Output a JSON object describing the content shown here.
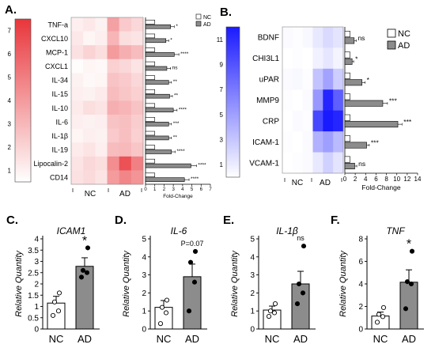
{
  "panels": {
    "A": {
      "letter": "A.",
      "colorbar_ticks": [
        "7",
        "6",
        "5",
        "4",
        "3",
        "2",
        "1"
      ],
      "rows": [
        "TNF-a",
        "CXCL10",
        "MCP-1",
        "CXCL1",
        "IL-34",
        "IL-15",
        "IL-10",
        "IL-6",
        "IL-1β",
        "IL-19",
        "Lipocalin-2",
        "CD14"
      ],
      "heat": [
        [
          1.5,
          1.7,
          1.4,
          3.8,
          2.6,
          2.2
        ],
        [
          1.7,
          1.3,
          1.5,
          3.2,
          2.0,
          1.8
        ],
        [
          1.9,
          2.3,
          2.0,
          4.0,
          3.4,
          3.0
        ],
        [
          1.1,
          1.3,
          1.2,
          2.4,
          2.2,
          1.8
        ],
        [
          1.4,
          1.2,
          1.3,
          2.8,
          2.6,
          2.2
        ],
        [
          1.5,
          1.4,
          1.6,
          3.0,
          2.7,
          2.4
        ],
        [
          1.6,
          2.0,
          1.8,
          3.4,
          3.2,
          2.8
        ],
        [
          1.5,
          1.4,
          1.5,
          2.8,
          2.9,
          2.5
        ],
        [
          1.3,
          1.5,
          1.4,
          2.6,
          2.9,
          2.4
        ],
        [
          1.6,
          1.8,
          1.5,
          3.0,
          3.1,
          2.7
        ],
        [
          1.8,
          2.2,
          2.0,
          4.4,
          6.2,
          4.8
        ],
        [
          1.9,
          2.1,
          1.8,
          4.0,
          4.6,
          4.2
        ]
      ],
      "groups": [
        "NC",
        "AD"
      ],
      "legend": [
        "NC",
        "AD"
      ],
      "xticks": [
        "0",
        "1",
        "2",
        "3",
        "4",
        "5",
        "6",
        "7"
      ],
      "xlabel": "Fold-Change",
      "sig": [
        "*",
        "*",
        "****",
        "ns",
        "**",
        "**",
        "****",
        "***",
        "**",
        "****",
        "****",
        "****"
      ]
    },
    "B": {
      "letter": "B.",
      "colorbar_ticks": [
        "11",
        "9",
        "7",
        "5",
        "3",
        "1"
      ],
      "rows": [
        "BDNF",
        "CHI3L1",
        "uPAR",
        "MMP9",
        "CRP",
        "ICAM-1",
        "VCAM-1"
      ],
      "heat": [
        [
          1.2,
          1.1,
          1.3,
          2.0,
          2.6,
          2.2
        ],
        [
          1.0,
          1.1,
          1.0,
          1.6,
          2.1,
          1.5
        ],
        [
          1.2,
          1.3,
          1.1,
          3.6,
          5.0,
          3.2
        ],
        [
          1.1,
          1.0,
          1.2,
          5.5,
          10.5,
          8.0
        ],
        [
          1.0,
          1.2,
          1.1,
          9.0,
          11.0,
          10.5
        ],
        [
          1.1,
          1.0,
          1.2,
          4.4,
          5.2,
          4.0
        ],
        [
          1.0,
          1.1,
          1.2,
          2.0,
          3.0,
          2.2
        ]
      ],
      "groups": [
        "NC",
        "AD"
      ],
      "legend": [
        "NC",
        "AD"
      ],
      "xticks": [
        "0",
        "2",
        "4",
        "6",
        "8",
        "10",
        "12",
        "14"
      ],
      "xlabel": "Fold-Change",
      "sig": [
        "ns",
        "*",
        "*",
        "***",
        "***",
        "***",
        "ns"
      ]
    },
    "C": {
      "letter": "C.",
      "title": "ICAM1",
      "ylabel": "Relative Quantity",
      "yticks": [
        "0",
        "0.5",
        "1",
        "1.5",
        "2",
        "2.5",
        "3",
        "3.5",
        "4"
      ],
      "sig": "*",
      "categories": [
        "NC",
        "AD"
      ]
    },
    "D": {
      "letter": "D.",
      "title": "IL-6",
      "ylabel": "Relative Quantity",
      "yticks": [
        "0",
        "1",
        "2",
        "3",
        "4",
        "5"
      ],
      "sig": "P=0.07",
      "categories": [
        "NC",
        "AD"
      ]
    },
    "E": {
      "letter": "E.",
      "title": "IL-1β",
      "ylabel": "Relative Quantity",
      "yticks": [
        "0",
        "1",
        "2",
        "3",
        "4",
        "5"
      ],
      "sig": "ns",
      "categories": [
        "NC",
        "AD"
      ]
    },
    "F": {
      "letter": "F.",
      "title": "TNF",
      "ylabel": "Relative Quantity",
      "yticks": [
        "0",
        "2",
        "4",
        "6",
        "8"
      ],
      "sig": "*",
      "categories": [
        "NC",
        "AD"
      ]
    }
  },
  "colors": {
    "nc_bar": "#ffffff",
    "ad_bar": "#8c8c8c",
    "heat_a": "#e8363b",
    "heat_b": "#1a1aff"
  },
  "chart_data": [
    {
      "type": "bar",
      "panel": "A",
      "categories": [
        "TNF-a",
        "CXCL10",
        "MCP-1",
        "CXCL1",
        "IL-34",
        "IL-15",
        "IL-10",
        "IL-6",
        "IL-1β",
        "IL-19",
        "Lipocalin-2",
        "CD14"
      ],
      "series": [
        {
          "name": "NC",
          "values": [
            1,
            1,
            1,
            1,
            1,
            1,
            1,
            1,
            1,
            1,
            1,
            1
          ]
        },
        {
          "name": "AD",
          "values": [
            2.7,
            2.2,
            3.1,
            2.3,
            2.5,
            2.6,
            3.0,
            2.5,
            2.5,
            2.8,
            4.9,
            4.2
          ]
        }
      ],
      "errors": [
        0.4,
        0.3,
        0.5,
        0.4,
        0.3,
        0.3,
        0.4,
        0.3,
        0.3,
        0.4,
        0.6,
        0.5
      ],
      "xlabel": "Fold-Change",
      "xlim": [
        0,
        7
      ]
    },
    {
      "type": "bar",
      "panel": "B",
      "categories": [
        "BDNF",
        "CHI3L1",
        "uPAR",
        "MMP9",
        "CRP",
        "ICAM-1",
        "VCAM-1"
      ],
      "series": [
        {
          "name": "NC",
          "values": [
            1,
            1,
            1,
            1,
            1,
            1,
            1
          ]
        },
        {
          "name": "AD",
          "values": [
            1.8,
            1.4,
            3.3,
            7.3,
            10.2,
            4.2,
            1.9
          ]
        }
      ],
      "errors": [
        0.4,
        0.3,
        0.6,
        0.9,
        0.8,
        0.5,
        0.4
      ],
      "xlabel": "Fold-Change",
      "xlim": [
        0,
        14
      ]
    },
    {
      "type": "bar",
      "panel": "C",
      "title": "ICAM1",
      "ylabel": "Relative Quantity",
      "ylim": [
        0,
        4
      ],
      "categories": [
        "NC",
        "AD"
      ],
      "values": [
        1.15,
        2.78
      ],
      "errors": [
        0.3,
        0.38
      ],
      "points": [
        [
          0.6,
          0.8,
          1.2,
          1.6
        ],
        [
          2.3,
          2.5,
          2.6,
          3.6
        ]
      ]
    },
    {
      "type": "bar",
      "panel": "D",
      "title": "IL-6",
      "ylabel": "Relative Quantity",
      "ylim": [
        0,
        5
      ],
      "categories": [
        "NC",
        "AD"
      ],
      "values": [
        1.2,
        2.9
      ],
      "errors": [
        0.38,
        0.7
      ],
      "points": [
        [
          0.3,
          0.9,
          1.2,
          1.6
        ],
        [
          1.0,
          2.6,
          3.7,
          4.3
        ]
      ]
    },
    {
      "type": "bar",
      "panel": "E",
      "title": "IL-1β",
      "ylabel": "Relative Quantity",
      "ylim": [
        0,
        5
      ],
      "categories": [
        "NC",
        "AD"
      ],
      "values": [
        1.05,
        2.5
      ],
      "errors": [
        0.22,
        0.7
      ],
      "points": [
        [
          0.7,
          0.9,
          1.0,
          1.4
        ],
        [
          1.4,
          2.0,
          2.5,
          4.6
        ]
      ]
    },
    {
      "type": "bar",
      "panel": "F",
      "title": "TNF",
      "ylabel": "Relative Quantity",
      "ylim": [
        0,
        8
      ],
      "categories": [
        "NC",
        "AD"
      ],
      "values": [
        1.15,
        4.15
      ],
      "errors": [
        0.35,
        1.1
      ],
      "points": [
        [
          0.6,
          1.1,
          1.3,
          1.9
        ],
        [
          1.8,
          4.0,
          4.2,
          6.9
        ]
      ]
    }
  ]
}
